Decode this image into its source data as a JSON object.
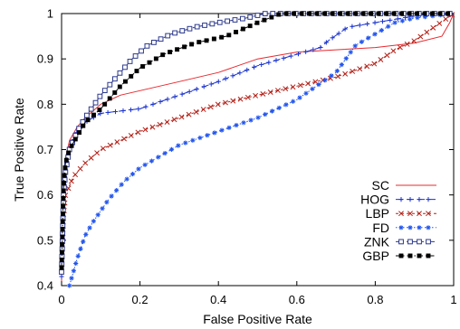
{
  "chart_data": {
    "type": "line",
    "title": "",
    "xlabel": "False Positive Rate",
    "ylabel": "True Positive Rate",
    "xlim": [
      0,
      1
    ],
    "ylim": [
      0.4,
      1
    ],
    "xticks": [
      "0",
      "0.2",
      "0.4",
      "0.6",
      "0.8",
      "1"
    ],
    "yticks": [
      "0.4",
      "0.5",
      "0.6",
      "0.7",
      "0.8",
      "0.9",
      "1"
    ],
    "grid": false,
    "legend_position": "bottom-right",
    "series": [
      {
        "name": "SC",
        "color": "#e8292e",
        "dash": "solid",
        "marker": "none",
        "points": [
          [
            0,
            0.41
          ],
          [
            0.002,
            0.6
          ],
          [
            0.005,
            0.64
          ],
          [
            0.01,
            0.68
          ],
          [
            0.02,
            0.72
          ],
          [
            0.04,
            0.75
          ],
          [
            0.06,
            0.77
          ],
          [
            0.1,
            0.8
          ],
          [
            0.15,
            0.82
          ],
          [
            0.2,
            0.83
          ],
          [
            0.3,
            0.85
          ],
          [
            0.4,
            0.87
          ],
          [
            0.5,
            0.9
          ],
          [
            0.6,
            0.915
          ],
          [
            0.7,
            0.92
          ],
          [
            0.8,
            0.925
          ],
          [
            0.9,
            0.935
          ],
          [
            0.97,
            0.95
          ],
          [
            0.99,
            0.98
          ],
          [
            1,
            1
          ]
        ]
      },
      {
        "name": "HOG",
        "color": "#1a33cc",
        "dash": "8,4",
        "marker": "plus",
        "points": [
          [
            0,
            0.42
          ],
          [
            0.005,
            0.6
          ],
          [
            0.01,
            0.66
          ],
          [
            0.02,
            0.7
          ],
          [
            0.04,
            0.74
          ],
          [
            0.06,
            0.76
          ],
          [
            0.1,
            0.78
          ],
          [
            0.2,
            0.79
          ],
          [
            0.3,
            0.82
          ],
          [
            0.4,
            0.85
          ],
          [
            0.5,
            0.885
          ],
          [
            0.6,
            0.91
          ],
          [
            0.66,
            0.925
          ],
          [
            0.68,
            0.94
          ],
          [
            0.73,
            0.97
          ],
          [
            0.8,
            0.98
          ],
          [
            0.87,
            0.99
          ],
          [
            0.93,
            1
          ],
          [
            1,
            1
          ]
        ]
      },
      {
        "name": "LBP",
        "color": "#b32017",
        "dash": "3,3",
        "marker": "x",
        "points": [
          [
            0,
            0.43
          ],
          [
            0.005,
            0.55
          ],
          [
            0.01,
            0.6
          ],
          [
            0.03,
            0.64
          ],
          [
            0.06,
            0.67
          ],
          [
            0.1,
            0.7
          ],
          [
            0.15,
            0.72
          ],
          [
            0.2,
            0.74
          ],
          [
            0.3,
            0.77
          ],
          [
            0.4,
            0.8
          ],
          [
            0.5,
            0.82
          ],
          [
            0.6,
            0.84
          ],
          [
            0.7,
            0.86
          ],
          [
            0.8,
            0.89
          ],
          [
            0.85,
            0.92
          ],
          [
            0.9,
            0.94
          ],
          [
            0.95,
            0.97
          ],
          [
            1,
            1
          ]
        ]
      },
      {
        "name": "FD",
        "color": "#2255ee",
        "dash": "1.5,2.5",
        "marker": "star",
        "points": [
          [
            0.02,
            0.4
          ],
          [
            0.04,
            0.46
          ],
          [
            0.06,
            0.51
          ],
          [
            0.08,
            0.54
          ],
          [
            0.12,
            0.59
          ],
          [
            0.16,
            0.63
          ],
          [
            0.2,
            0.66
          ],
          [
            0.3,
            0.71
          ],
          [
            0.4,
            0.74
          ],
          [
            0.5,
            0.77
          ],
          [
            0.6,
            0.81
          ],
          [
            0.65,
            0.84
          ],
          [
            0.7,
            0.87
          ],
          [
            0.75,
            0.93
          ],
          [
            0.8,
            0.955
          ],
          [
            0.85,
            0.98
          ],
          [
            0.9,
            0.99
          ],
          [
            1,
            1
          ]
        ]
      },
      {
        "name": "ZNK",
        "color": "#2d3a8c",
        "dash": "9,3,2,3",
        "marker": "square",
        "points": [
          [
            0,
            0.43
          ],
          [
            0.005,
            0.6
          ],
          [
            0.01,
            0.65
          ],
          [
            0.02,
            0.7
          ],
          [
            0.04,
            0.74
          ],
          [
            0.06,
            0.77
          ],
          [
            0.1,
            0.82
          ],
          [
            0.14,
            0.86
          ],
          [
            0.18,
            0.9
          ],
          [
            0.22,
            0.93
          ],
          [
            0.28,
            0.955
          ],
          [
            0.34,
            0.97
          ],
          [
            0.4,
            0.98
          ],
          [
            0.47,
            0.99
          ],
          [
            0.52,
            1
          ],
          [
            1,
            1
          ]
        ]
      },
      {
        "name": "GBP",
        "color": "#000000",
        "dash": "5,3,1.5,3",
        "marker": "filledsquare",
        "points": [
          [
            0,
            0.44
          ],
          [
            0.005,
            0.62
          ],
          [
            0.01,
            0.67
          ],
          [
            0.02,
            0.7
          ],
          [
            0.04,
            0.73
          ],
          [
            0.06,
            0.76
          ],
          [
            0.1,
            0.79
          ],
          [
            0.15,
            0.84
          ],
          [
            0.2,
            0.88
          ],
          [
            0.26,
            0.91
          ],
          [
            0.34,
            0.935
          ],
          [
            0.42,
            0.95
          ],
          [
            0.5,
            0.98
          ],
          [
            0.56,
            1
          ],
          [
            1,
            1
          ]
        ]
      }
    ]
  }
}
